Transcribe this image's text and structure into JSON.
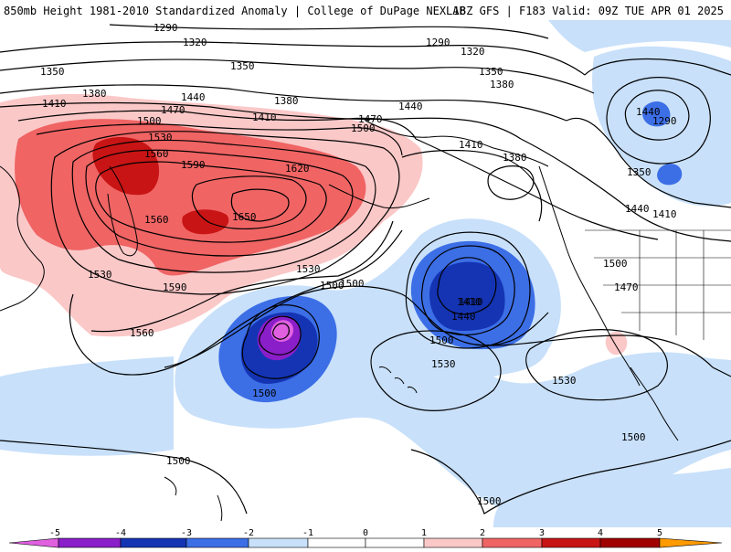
{
  "header": {
    "left_title": "850mb Height 1981-2010 Standardized Anomaly | College of DuPage NEXLAB",
    "right_title": "18Z GFS | F183 Valid: 09Z TUE APR 01 2025"
  },
  "colors": {
    "anom_neg5": "#e060e0",
    "anom_neg4": "#8a1ec8",
    "anom_neg3": "#1434b4",
    "anom_neg2": "#3c6ee6",
    "anom_neg1": "#c8e0fa",
    "anom_pos1": "#fbc8c8",
    "anom_pos2": "#f06464",
    "anom_pos3": "#c81414",
    "anom_pos4": "#a00000",
    "anom_pos5": "#ff9a00",
    "contour": "#000000"
  },
  "colorbar": {
    "ticks": [
      "-5",
      "-4",
      "-3",
      "-2",
      "-1",
      "0",
      "1",
      "2",
      "3",
      "4",
      "5"
    ]
  },
  "contour_labels": [
    {
      "text": "1290"
    },
    {
      "text": "1320"
    },
    {
      "text": "1350"
    },
    {
      "text": "1350"
    },
    {
      "text": "1380"
    },
    {
      "text": "1380"
    },
    {
      "text": "1410"
    },
    {
      "text": "1410"
    },
    {
      "text": "1440"
    },
    {
      "text": "1470"
    },
    {
      "text": "1500"
    },
    {
      "text": "1530"
    },
    {
      "text": "1560"
    },
    {
      "text": "1590"
    },
    {
      "text": "1620"
    },
    {
      "text": "1650"
    },
    {
      "text": "1560"
    },
    {
      "text": "1530"
    },
    {
      "text": "1590"
    },
    {
      "text": "1560"
    },
    {
      "text": "1530"
    },
    {
      "text": "1500"
    },
    {
      "text": "1500"
    },
    {
      "text": "1290"
    },
    {
      "text": "1320"
    },
    {
      "text": "1350"
    },
    {
      "text": "1380"
    },
    {
      "text": "1410"
    },
    {
      "text": "1440"
    },
    {
      "text": "1470"
    },
    {
      "text": "1500"
    },
    {
      "text": "1440"
    },
    {
      "text": "1410"
    },
    {
      "text": "1380"
    },
    {
      "text": "1410"
    },
    {
      "text": "1440"
    },
    {
      "text": "1500"
    },
    {
      "text": "1530"
    },
    {
      "text": "1500"
    },
    {
      "text": "1530"
    },
    {
      "text": "1500"
    },
    {
      "text": "1500"
    },
    {
      "text": "1500"
    },
    {
      "text": "1290"
    },
    {
      "text": "1350"
    },
    {
      "text": "1440"
    },
    {
      "text": "1410"
    },
    {
      "text": "1500"
    },
    {
      "text": "1470"
    }
  ]
}
